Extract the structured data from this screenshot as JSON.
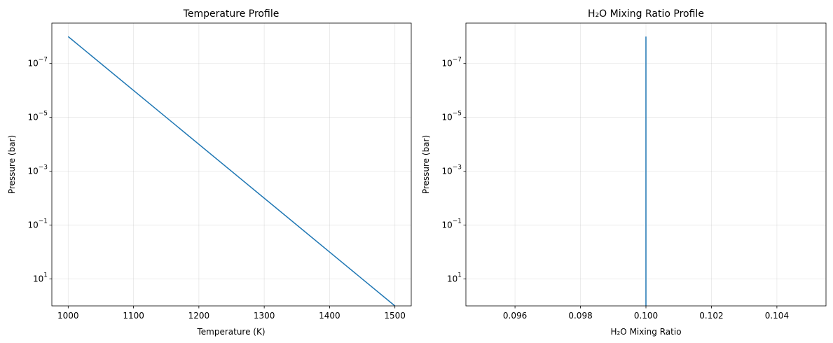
{
  "chart_data": [
    {
      "type": "line",
      "title": "Temperature Profile",
      "xlabel": "Temperature (K)",
      "ylabel": "Pressure (bar)",
      "yscale": "log",
      "yaxis_inverted": true,
      "xlim": [
        975,
        1525
      ],
      "ylim_log10": [
        2,
        -8.5
      ],
      "xticks": [
        {
          "value": 1000,
          "label": "1000"
        },
        {
          "value": 1100,
          "label": "1100"
        },
        {
          "value": 1200,
          "label": "1200"
        },
        {
          "value": 1300,
          "label": "1300"
        },
        {
          "value": 1400,
          "label": "1400"
        },
        {
          "value": 1500,
          "label": "1500"
        }
      ],
      "yticks": [
        {
          "log10": -7,
          "base": "10",
          "exp": "−7"
        },
        {
          "log10": -5,
          "base": "10",
          "exp": "−5"
        },
        {
          "log10": -3,
          "base": "10",
          "exp": "−3"
        },
        {
          "log10": -1,
          "base": "10",
          "exp": "−1"
        },
        {
          "log10": 1,
          "base": "10",
          "exp": "1"
        }
      ],
      "grid": true,
      "color": "#1f77b4",
      "series": [
        {
          "x": [
            1000,
            1500
          ],
          "y": [
            1e-08,
            100
          ]
        }
      ]
    },
    {
      "type": "line",
      "title": "H₂O Mixing Ratio Profile",
      "xlabel": "H₂O Mixing Ratio",
      "ylabel": "Pressure (bar)",
      "yscale": "log",
      "yaxis_inverted": true,
      "xlim": [
        0.0945,
        0.1055
      ],
      "ylim_log10": [
        2,
        -8.5
      ],
      "xticks": [
        {
          "value": 0.096,
          "label": "0.096"
        },
        {
          "value": 0.098,
          "label": "0.098"
        },
        {
          "value": 0.1,
          "label": "0.100"
        },
        {
          "value": 0.102,
          "label": "0.102"
        },
        {
          "value": 0.104,
          "label": "0.104"
        }
      ],
      "yticks": [
        {
          "log10": -7,
          "base": "10",
          "exp": "−7"
        },
        {
          "log10": -5,
          "base": "10",
          "exp": "−5"
        },
        {
          "log10": -3,
          "base": "10",
          "exp": "−3"
        },
        {
          "log10": -1,
          "base": "10",
          "exp": "−1"
        },
        {
          "log10": 1,
          "base": "10",
          "exp": "1"
        }
      ],
      "grid": true,
      "color": "#1f77b4",
      "series": [
        {
          "x": [
            0.1,
            0.1
          ],
          "y": [
            1e-08,
            100
          ]
        }
      ]
    }
  ]
}
